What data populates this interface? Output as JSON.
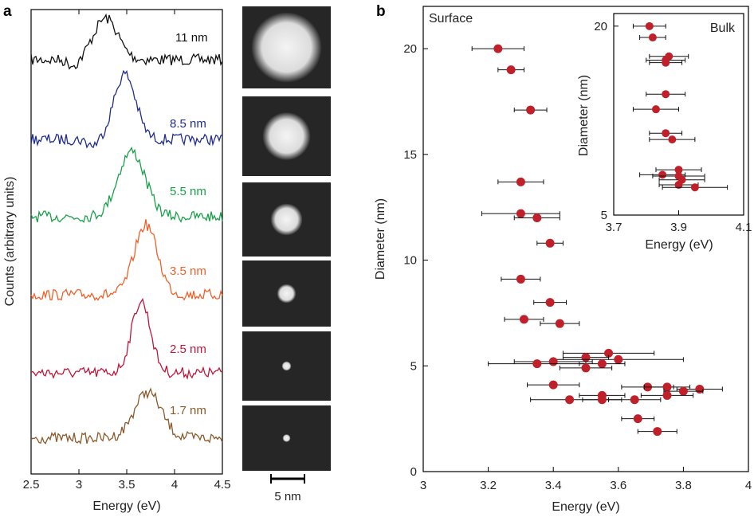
{
  "figure": {
    "panel_a_label": "a",
    "panel_b_label": "b",
    "scale_bar_label": "5 nm"
  },
  "colors": {
    "marker": "#c0202a",
    "errorbar": "#111111"
  },
  "chart_data": [
    {
      "type": "line",
      "panel": "a",
      "xlabel": "Energy (eV)",
      "ylabel": "Counts (arbitrary units)",
      "xlim": [
        2.5,
        4.5
      ],
      "xticks": [
        "2.5",
        "3",
        "3.5",
        "4",
        "4.5"
      ],
      "series": [
        {
          "name": "11 nm",
          "color": "#111111",
          "peak_eV": 3.28,
          "peak_width": 0.18
        },
        {
          "name": "8.5 nm",
          "color": "#1f2d8f",
          "peak_eV": 3.48,
          "peak_width": 0.16
        },
        {
          "name": "5.5 nm",
          "color": "#1aa04a",
          "peak_eV": 3.55,
          "peak_width": 0.2
        },
        {
          "name": "3.5 nm",
          "color": "#f0602a",
          "peak_eV": 3.7,
          "peak_width": 0.17
        },
        {
          "name": "2.5 nm",
          "color": "#c0163a",
          "peak_eV": 3.65,
          "peak_width": 0.14
        },
        {
          "name": "1.7 nm",
          "color": "#8a5a2a",
          "peak_eV": 3.72,
          "peak_width": 0.2
        }
      ]
    },
    {
      "type": "scatter",
      "panel": "b",
      "title": "Surface",
      "xlabel": "Energy (eV)",
      "ylabel": "Diameter (nm)",
      "xlim": [
        3,
        4
      ],
      "ylim": [
        0,
        22
      ],
      "xticks": [
        "3",
        "3.2",
        "3.4",
        "3.6",
        "3.8",
        "4"
      ],
      "yticks": [
        "0",
        "5",
        "10",
        "15",
        "20"
      ],
      "points": [
        {
          "x": 3.23,
          "y": 20.0,
          "xerr": 0.08
        },
        {
          "x": 3.27,
          "y": 19.0,
          "xerr": 0.04
        },
        {
          "x": 3.33,
          "y": 17.1,
          "xerr": 0.05
        },
        {
          "x": 3.3,
          "y": 13.7,
          "xerr": 0.07
        },
        {
          "x": 3.3,
          "y": 12.2,
          "xerr": 0.12
        },
        {
          "x": 3.35,
          "y": 12.0,
          "xerr": 0.07
        },
        {
          "x": 3.39,
          "y": 10.8,
          "xerr": 0.04
        },
        {
          "x": 3.3,
          "y": 9.1,
          "xerr": 0.06
        },
        {
          "x": 3.39,
          "y": 8.0,
          "xerr": 0.05
        },
        {
          "x": 3.31,
          "y": 7.2,
          "xerr": 0.06
        },
        {
          "x": 3.42,
          "y": 7.0,
          "xerr": 0.06
        },
        {
          "x": 3.57,
          "y": 5.6,
          "xerr": 0.14
        },
        {
          "x": 3.5,
          "y": 5.4,
          "xerr": 0.07
        },
        {
          "x": 3.6,
          "y": 5.3,
          "xerr": 0.2
        },
        {
          "x": 3.4,
          "y": 5.2,
          "xerr": 0.12
        },
        {
          "x": 3.35,
          "y": 5.1,
          "xerr": 0.15
        },
        {
          "x": 3.55,
          "y": 5.1,
          "xerr": 0.07
        },
        {
          "x": 3.5,
          "y": 4.9,
          "xerr": 0.08
        },
        {
          "x": 3.69,
          "y": 4.0,
          "xerr": 0.08
        },
        {
          "x": 3.75,
          "y": 4.0,
          "xerr": 0.07
        },
        {
          "x": 3.85,
          "y": 3.9,
          "xerr": 0.07
        },
        {
          "x": 3.8,
          "y": 3.8,
          "xerr": 0.06
        },
        {
          "x": 3.4,
          "y": 4.1,
          "xerr": 0.08
        },
        {
          "x": 3.55,
          "y": 3.6,
          "xerr": 0.07
        },
        {
          "x": 3.75,
          "y": 3.6,
          "xerr": 0.08
        },
        {
          "x": 3.45,
          "y": 3.4,
          "xerr": 0.12
        },
        {
          "x": 3.55,
          "y": 3.4,
          "xerr": 0.06
        },
        {
          "x": 3.65,
          "y": 3.4,
          "xerr": 0.08
        },
        {
          "x": 3.66,
          "y": 2.5,
          "xerr": 0.05
        },
        {
          "x": 3.72,
          "y": 1.9,
          "xerr": 0.06
        }
      ]
    },
    {
      "type": "scatter",
      "panel": "b-inset",
      "title": "Bulk",
      "xlabel": "Energy (eV)",
      "ylabel": "Diameter (nm)",
      "xlim": [
        3.7,
        4.1
      ],
      "ylim": [
        5,
        21
      ],
      "xticks": [
        "3.7",
        "3.9",
        "4.1"
      ],
      "yticks": [
        "5",
        "20"
      ],
      "points": [
        {
          "x": 3.81,
          "y": 20.0,
          "xerr": 0.05
        },
        {
          "x": 3.82,
          "y": 19.1,
          "xerr": 0.04
        },
        {
          "x": 3.87,
          "y": 17.6,
          "xerr": 0.06
        },
        {
          "x": 3.86,
          "y": 17.3,
          "xerr": 0.06
        },
        {
          "x": 3.86,
          "y": 17.1,
          "xerr": 0.05
        },
        {
          "x": 3.86,
          "y": 14.6,
          "xerr": 0.06
        },
        {
          "x": 3.83,
          "y": 13.4,
          "xerr": 0.07
        },
        {
          "x": 3.86,
          "y": 11.5,
          "xerr": 0.05
        },
        {
          "x": 3.88,
          "y": 11.0,
          "xerr": 0.07
        },
        {
          "x": 3.9,
          "y": 8.6,
          "xerr": 0.07
        },
        {
          "x": 3.85,
          "y": 8.2,
          "xerr": 0.07
        },
        {
          "x": 3.9,
          "y": 8.1,
          "xerr": 0.08
        },
        {
          "x": 3.91,
          "y": 7.8,
          "xerr": 0.07
        },
        {
          "x": 3.9,
          "y": 7.4,
          "xerr": 0.06
        },
        {
          "x": 3.95,
          "y": 7.2,
          "xerr": 0.1
        }
      ]
    }
  ]
}
